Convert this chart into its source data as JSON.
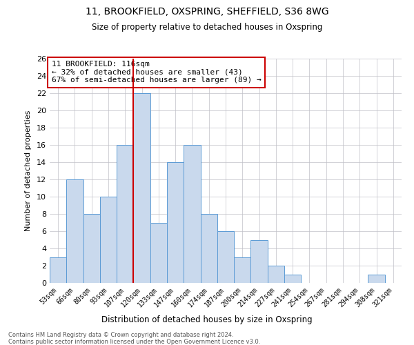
{
  "title": "11, BROOKFIELD, OXSPRING, SHEFFIELD, S36 8WG",
  "subtitle": "Size of property relative to detached houses in Oxspring",
  "xlabel": "Distribution of detached houses by size in Oxspring",
  "ylabel": "Number of detached properties",
  "categories": [
    "53sqm",
    "66sqm",
    "80sqm",
    "93sqm",
    "107sqm",
    "120sqm",
    "133sqm",
    "147sqm",
    "160sqm",
    "174sqm",
    "187sqm",
    "200sqm",
    "214sqm",
    "227sqm",
    "241sqm",
    "254sqm",
    "267sqm",
    "281sqm",
    "294sqm",
    "308sqm",
    "321sqm"
  ],
  "values": [
    3,
    12,
    8,
    10,
    16,
    22,
    7,
    14,
    16,
    8,
    6,
    3,
    5,
    2,
    1,
    0,
    0,
    0,
    0,
    1,
    0
  ],
  "bar_color": "#c9d9ed",
  "bar_edge_color": "#5b9bd5",
  "grid_color": "#c0c0c8",
  "vline_color": "#cc0000",
  "vline_index": 5,
  "annotation_title": "11 BROOKFIELD: 116sqm",
  "annotation_line1": "← 32% of detached houses are smaller (43)",
  "annotation_line2": "67% of semi-detached houses are larger (89) →",
  "annotation_box_color": "#cc0000",
  "annotation_fill": "#ffffff",
  "footnote1": "Contains HM Land Registry data © Crown copyright and database right 2024.",
  "footnote2": "Contains public sector information licensed under the Open Government Licence v3.0.",
  "ylim": [
    0,
    26
  ],
  "yticks": [
    0,
    2,
    4,
    6,
    8,
    10,
    12,
    14,
    16,
    18,
    20,
    22,
    24,
    26
  ]
}
